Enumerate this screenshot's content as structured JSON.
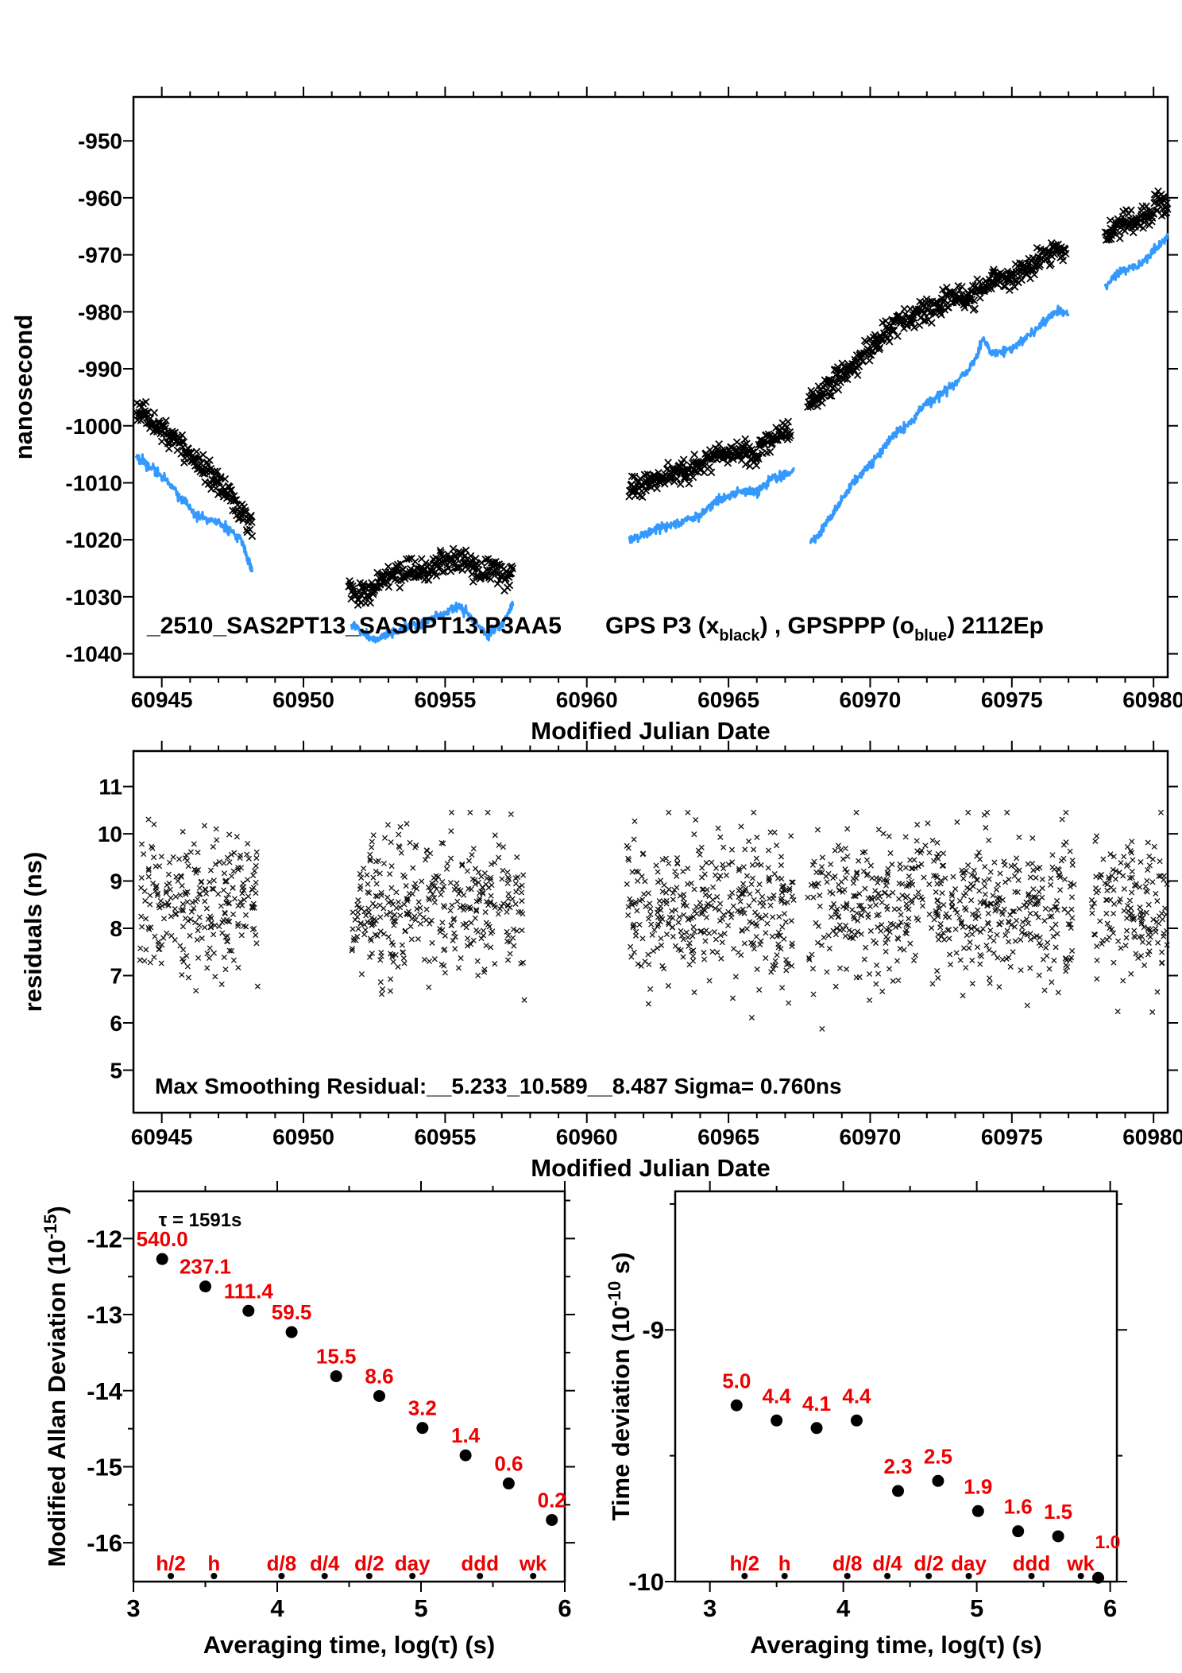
{
  "colors": {
    "black": "#000000",
    "blue": "#3399ff",
    "red": "#ee0000",
    "background": "#ffffff"
  },
  "chart_data": [
    {
      "id": "phase-comparison",
      "type": "scatter",
      "title": "_2510_SAS2PT13_SAS0PT13.P3AA5",
      "legend_parts": [
        {
          "t": "GPS P3 (x"
        },
        {
          "sub": "black"
        },
        {
          "t": ") ,  GPSPPP (o"
        },
        {
          "sub": "blue"
        },
        {
          "t": ")  2112Ep"
        }
      ],
      "xlabel": "Modified Julian Date",
      "ylabel": "nanosecond",
      "xlim": [
        60944.0,
        60980.5
      ],
      "ylim": [
        -1044.1,
        -942.3
      ],
      "xticks": [
        60945,
        60950,
        60955,
        60960,
        60965,
        60970,
        60975,
        60980
      ],
      "xminor_step": 1,
      "yticks": [
        -950,
        -960,
        -970,
        -980,
        -990,
        -1000,
        -1010,
        -1020,
        -1030,
        -1040
      ],
      "series": [
        {
          "name": "GPS P3",
          "marker": "x",
          "color_key": "black",
          "noise_ns": 0.9,
          "step_mjd": 0.022,
          "seed": 11,
          "segments": [
            [
              [
                60944.1,
                -996.5
              ],
              [
                60944.6,
                -999
              ],
              [
                60945.1,
                -1001
              ],
              [
                60945.6,
                -1003
              ],
              [
                60946.1,
                -1006
              ],
              [
                60946.5,
                -1007.5
              ],
              [
                60947.0,
                -1010
              ],
              [
                60947.4,
                -1012.5
              ],
              [
                60947.8,
                -1015.5
              ],
              [
                60948.2,
                -1017
              ]
            ],
            [
              [
                60951.6,
                -1027.5
              ],
              [
                60951.9,
                -1029.5
              ],
              [
                60952.3,
                -1029.5
              ],
              [
                60952.8,
                -1027
              ],
              [
                60953.4,
                -1026
              ],
              [
                60954.0,
                -1025.5
              ],
              [
                60954.7,
                -1024.5
              ],
              [
                60955.3,
                -1023.5
              ],
              [
                60955.9,
                -1024.5
              ],
              [
                60956.3,
                -1026.5
              ],
              [
                60956.7,
                -1024.5
              ],
              [
                60957.1,
                -1027
              ],
              [
                60957.4,
                -1025.5
              ]
            ],
            [
              [
                60961.5,
                -1011.5
              ],
              [
                60962.1,
                -1010
              ],
              [
                60962.7,
                -1009
              ],
              [
                60963.3,
                -1008.5
              ],
              [
                60963.9,
                -1007
              ],
              [
                60964.5,
                -1005.5
              ],
              [
                60965.0,
                -1004.5
              ],
              [
                60965.5,
                -1004.5
              ],
              [
                60965.9,
                -1005.5
              ],
              [
                60966.3,
                -1003
              ],
              [
                60966.8,
                -1001.5
              ],
              [
                60967.2,
                -1000.5
              ]
            ],
            [
              [
                60967.8,
                -996.5
              ],
              [
                60968.3,
                -994
              ],
              [
                60968.8,
                -991.5
              ],
              [
                60969.3,
                -990
              ],
              [
                60969.8,
                -987.5
              ],
              [
                60970.2,
                -985.5
              ],
              [
                60970.7,
                -983
              ],
              [
                60971.2,
                -981.5
              ],
              [
                60971.7,
                -980
              ],
              [
                60972.2,
                -979.5
              ],
              [
                60972.7,
                -978
              ],
              [
                60973.2,
                -976.5
              ],
              [
                60973.6,
                -977.5
              ],
              [
                60974.0,
                -975.5
              ],
              [
                60974.4,
                -974
              ],
              [
                60974.9,
                -974.5
              ],
              [
                60975.3,
                -973
              ],
              [
                60975.8,
                -971.5
              ],
              [
                60976.2,
                -970
              ],
              [
                60976.9,
                -969.5
              ]
            ],
            [
              [
                60978.3,
                -967.5
              ],
              [
                60978.6,
                -965.5
              ],
              [
                60979.0,
                -964
              ],
              [
                60979.4,
                -964.5
              ],
              [
                60979.8,
                -963
              ],
              [
                60980.1,
                -961.5
              ],
              [
                60980.35,
                -960.5
              ],
              [
                60980.5,
                -961.5
              ]
            ]
          ]
        },
        {
          "name": "GPSPPP",
          "marker": "o",
          "color_key": "blue",
          "noise_ns": 0.42,
          "step_mjd": 0.018,
          "seed": 22,
          "segments": [
            [
              [
                60944.1,
                -1005.5
              ],
              [
                60944.7,
                -1007.5
              ],
              [
                60945.2,
                -1009.5
              ],
              [
                60945.7,
                -1013
              ],
              [
                60946.2,
                -1015.5
              ],
              [
                60946.6,
                -1016.5
              ],
              [
                60947.0,
                -1017
              ],
              [
                60947.4,
                -1018.5
              ],
              [
                60947.8,
                -1020
              ],
              [
                60948.0,
                -1023
              ],
              [
                60948.2,
                -1025.5
              ]
            ],
            [
              [
                60951.7,
                -1034.5
              ],
              [
                60952.1,
                -1036.5
              ],
              [
                60952.5,
                -1037.5
              ],
              [
                60953.0,
                -1036.5
              ],
              [
                60953.5,
                -1035.5
              ],
              [
                60954.0,
                -1035
              ],
              [
                60954.5,
                -1034
              ],
              [
                60955.0,
                -1033
              ],
              [
                60955.4,
                -1031.5
              ],
              [
                60955.8,
                -1033
              ],
              [
                60956.2,
                -1035
              ],
              [
                60956.5,
                -1037
              ],
              [
                60956.8,
                -1035.5
              ],
              [
                60957.1,
                -1034
              ],
              [
                60957.4,
                -1031.5
              ]
            ],
            [
              [
                60961.5,
                -1020
              ],
              [
                60962.0,
                -1019
              ],
              [
                60962.5,
                -1018
              ],
              [
                60963.0,
                -1017.5
              ],
              [
                60963.5,
                -1016.5
              ],
              [
                60964.0,
                -1015.5
              ],
              [
                60964.5,
                -1013.5
              ],
              [
                60965.0,
                -1012.5
              ],
              [
                60965.5,
                -1011.5
              ],
              [
                60966.0,
                -1011.5
              ],
              [
                60966.5,
                -1009.5
              ],
              [
                60967.0,
                -1008.5
              ],
              [
                60967.3,
                -1008
              ]
            ],
            [
              [
                60967.9,
                -1020.5
              ],
              [
                60968.2,
                -1019
              ],
              [
                60968.6,
                -1016
              ],
              [
                60969.0,
                -1013
              ],
              [
                60969.4,
                -1010
              ],
              [
                60969.8,
                -1008
              ],
              [
                60970.2,
                -1005.5
              ],
              [
                60970.6,
                -1003
              ],
              [
                60971.0,
                -1001
              ],
              [
                60971.4,
                -999.5
              ],
              [
                60971.8,
                -997
              ],
              [
                60972.2,
                -995.5
              ],
              [
                60972.6,
                -994
              ],
              [
                60973.0,
                -992.5
              ],
              [
                60973.4,
                -990.5
              ],
              [
                60973.8,
                -987.5
              ],
              [
                60974.0,
                -984.5
              ],
              [
                60974.3,
                -987.5
              ],
              [
                60974.7,
                -987
              ],
              [
                60975.1,
                -986
              ],
              [
                60975.5,
                -984.5
              ],
              [
                60975.9,
                -983
              ],
              [
                60976.3,
                -981
              ],
              [
                60976.7,
                -979.5
              ],
              [
                60977.0,
                -980.5
              ]
            ],
            [
              [
                60978.3,
                -975.5
              ],
              [
                60978.7,
                -973.5
              ],
              [
                60979.0,
                -972.5
              ],
              [
                60979.4,
                -972
              ],
              [
                60979.8,
                -970.5
              ],
              [
                60980.1,
                -969
              ],
              [
                60980.35,
                -967.5
              ],
              [
                60980.5,
                -967
              ]
            ]
          ]
        }
      ]
    },
    {
      "id": "residuals",
      "type": "scatter",
      "xlabel": "Modified Julian Date",
      "ylabel": "residuals (ns)",
      "annotation": "Max Smoothing Residual:__5.233_10.589__8.487  Sigma= 0.760ns",
      "xlim": [
        60944.0,
        60980.5
      ],
      "ylim": [
        4.1,
        11.75
      ],
      "xticks": [
        60945,
        60950,
        60955,
        60960,
        60965,
        60970,
        60975,
        60980
      ],
      "xminor_step": 1,
      "yticks": [
        5,
        6,
        7,
        8,
        9,
        10,
        11
      ],
      "scatter_model": {
        "mean_ns": 8.45,
        "sigma_ns": 0.76,
        "clip": [
          5.2,
          10.45
        ],
        "points_per_day": 60,
        "seed": 33,
        "time_segments": [
          [
            60944.2,
            60948.4
          ],
          [
            60951.7,
            60957.8
          ],
          [
            60961.4,
            60967.3
          ],
          [
            60967.8,
            60977.2
          ],
          [
            60977.8,
            60980.5
          ]
        ]
      }
    },
    {
      "id": "mdev",
      "type": "scatter",
      "xlabel": "Averaging time, log(τ) (s)",
      "ylabel_parts": {
        "pre": "Modified Allan Deviation (10",
        "sup": "-15",
        "post": ")"
      },
      "annotation": "τ = 1591s",
      "xlim": [
        3.0,
        6.0
      ],
      "ylim": [
        -16.51,
        -11.38
      ],
      "xticks": [
        3,
        4,
        5,
        6
      ],
      "xminors": [
        3.5,
        4.5,
        5.5
      ],
      "yticks": [
        -12,
        -13,
        -14,
        -15,
        -16
      ],
      "yminors": [
        -11.5,
        -12.5,
        -13.5,
        -14.5,
        -15.5
      ],
      "points": {
        "log_tau": [
          3.2,
          3.5,
          3.8,
          4.1,
          4.41,
          4.71,
          5.01,
          5.31,
          5.61,
          5.91
        ],
        "log_dev": [
          -12.27,
          -12.63,
          -12.95,
          -13.23,
          -13.81,
          -14.07,
          -14.49,
          -14.85,
          -15.22,
          -15.7
        ],
        "labels": [
          "540.0",
          "237.1",
          "111.4",
          "59.5",
          "15.5",
          "8.6",
          "3.2",
          "1.4",
          "0.6",
          "0.2"
        ]
      },
      "tau_marks": [
        {
          "label": "h/2",
          "log_tau": 3.26
        },
        {
          "label": "h",
          "log_tau": 3.56
        },
        {
          "label": "d/8",
          "log_tau": 4.03
        },
        {
          "label": "d/4",
          "log_tau": 4.33
        },
        {
          "label": "d/2",
          "log_tau": 4.64
        },
        {
          "label": "day",
          "log_tau": 4.94
        },
        {
          "label": "ddd",
          "log_tau": 5.41
        },
        {
          "label": "wk",
          "log_tau": 5.78
        }
      ]
    },
    {
      "id": "tdev",
      "type": "scatter",
      "xlabel": "Averaging time, log(τ) (s)",
      "ylabel_parts": {
        "pre": "Time deviation (10",
        "sup": "-10",
        "post": " s)"
      },
      "xlim": [
        2.74,
        6.05
      ],
      "ylim": [
        -10.0,
        -8.45
      ],
      "xticks": [
        3,
        4,
        5,
        6
      ],
      "xminors": [
        3.5,
        4.5,
        5.5
      ],
      "yticks": [
        -9,
        -10
      ],
      "yminors": [
        -8.5,
        -9.5
      ],
      "points": {
        "log_tau": [
          3.2,
          3.5,
          3.8,
          4.1,
          4.41,
          4.71,
          5.01,
          5.31,
          5.61,
          5.91
        ],
        "log_dev": [
          -9.3,
          -9.36,
          -9.39,
          -9.36,
          -9.64,
          -9.6,
          -9.72,
          -9.8,
          -9.82,
          -9.985
        ],
        "labels": [
          "5.0",
          "4.4",
          "4.1",
          "4.4",
          "2.3",
          "2.5",
          "1.9",
          "1.6",
          "1.5",
          "1.0"
        ]
      },
      "tau_marks": [
        {
          "label": "h/2",
          "log_tau": 3.26
        },
        {
          "label": "h",
          "log_tau": 3.56
        },
        {
          "label": "d/8",
          "log_tau": 4.03
        },
        {
          "label": "d/4",
          "log_tau": 4.33
        },
        {
          "label": "d/2",
          "log_tau": 4.64
        },
        {
          "label": "day",
          "log_tau": 4.94
        },
        {
          "label": "ddd",
          "log_tau": 5.41
        },
        {
          "label": "wk",
          "log_tau": 5.78
        }
      ]
    }
  ]
}
